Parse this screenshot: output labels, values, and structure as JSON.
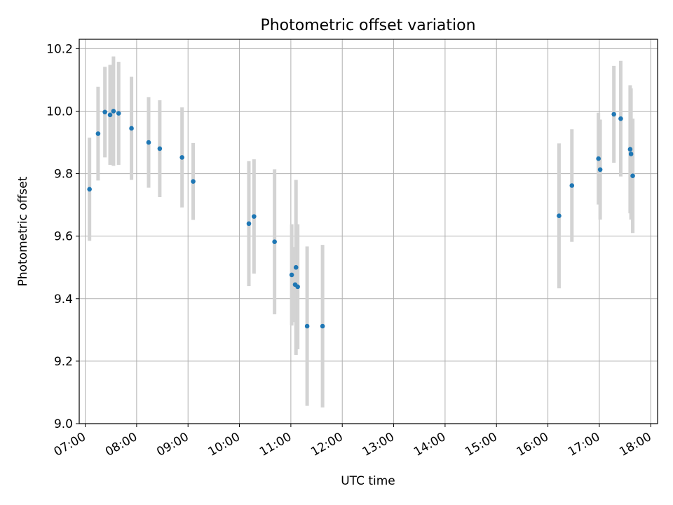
{
  "chart_data": {
    "type": "scatter",
    "title": "Photometric offset variation",
    "xlabel": "UTC time",
    "ylabel": "Photometric offset",
    "x_format": "HH:MM",
    "xlim": [
      "06:53",
      "18:08"
    ],
    "ylim": [
      9.0,
      10.23
    ],
    "grid": true,
    "x_ticks": [
      "07:00",
      "08:00",
      "09:00",
      "10:00",
      "11:00",
      "12:00",
      "13:00",
      "14:00",
      "15:00",
      "16:00",
      "17:00",
      "18:00"
    ],
    "y_ticks": [
      "9.0",
      "9.2",
      "9.4",
      "9.6",
      "9.8",
      "10.0",
      "10.2"
    ],
    "colors": {
      "point": "#1f77b4",
      "errorbar": "#d3d3d3",
      "grid": "#b0b0b0"
    },
    "points": [
      {
        "x": "07:05",
        "y": 9.75,
        "err": 0.165
      },
      {
        "x": "07:15",
        "y": 9.928,
        "err": 0.15
      },
      {
        "x": "07:23",
        "y": 9.997,
        "err": 0.145
      },
      {
        "x": "07:29",
        "y": 9.988,
        "err": 0.16
      },
      {
        "x": "07:33",
        "y": 10.0,
        "err": 0.175
      },
      {
        "x": "07:39",
        "y": 9.993,
        "err": 0.165
      },
      {
        "x": "07:54",
        "y": 9.945,
        "err": 0.165
      },
      {
        "x": "08:14",
        "y": 9.9,
        "err": 0.145
      },
      {
        "x": "08:27",
        "y": 9.88,
        "err": 0.155
      },
      {
        "x": "08:53",
        "y": 9.852,
        "err": 0.16
      },
      {
        "x": "09:06",
        "y": 9.775,
        "err": 0.123
      },
      {
        "x": "10:11",
        "y": 9.64,
        "err": 0.2
      },
      {
        "x": "10:17",
        "y": 9.663,
        "err": 0.183
      },
      {
        "x": "10:41",
        "y": 9.582,
        "err": 0.232
      },
      {
        "x": "11:01",
        "y": 9.476,
        "err": 0.162
      },
      {
        "x": "11:05",
        "y": 9.445,
        "err": 0.12
      },
      {
        "x": "11:06",
        "y": 9.5,
        "err": 0.28
      },
      {
        "x": "11:08",
        "y": 9.438,
        "err": 0.2
      },
      {
        "x": "11:19",
        "y": 9.312,
        "err": 0.255
      },
      {
        "x": "11:37",
        "y": 9.312,
        "err": 0.26
      },
      {
        "x": "16:13",
        "y": 9.665,
        "err": 0.232
      },
      {
        "x": "16:28",
        "y": 9.762,
        "err": 0.18
      },
      {
        "x": "16:59",
        "y": 9.848,
        "err": 0.147
      },
      {
        "x": "17:01",
        "y": 9.813,
        "err": 0.16
      },
      {
        "x": "17:17",
        "y": 9.99,
        "err": 0.155
      },
      {
        "x": "17:25",
        "y": 9.976,
        "err": 0.185
      },
      {
        "x": "17:36",
        "y": 9.878,
        "err": 0.205
      },
      {
        "x": "17:37",
        "y": 9.863,
        "err": 0.21
      },
      {
        "x": "17:39",
        "y": 9.793,
        "err": 0.183
      }
    ]
  }
}
